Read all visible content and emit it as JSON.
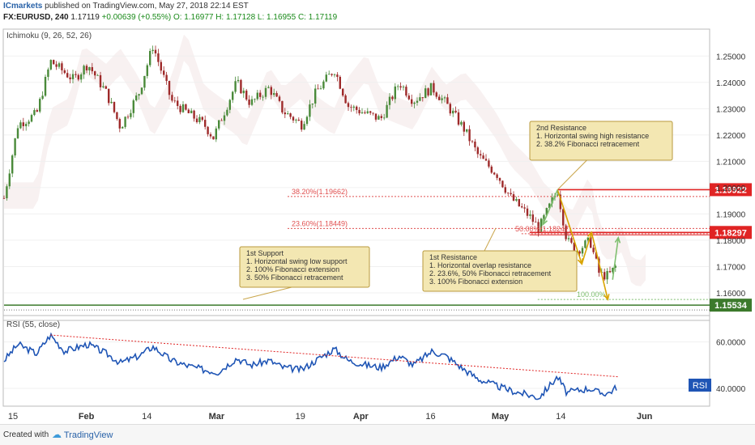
{
  "header": {
    "author": "ICmarkets",
    "published": "published on TradingView.com, May 27, 2018 22:14 EST",
    "symbol": "FX:EURUSD, 240",
    "last": "1.17119",
    "change": "+0.00639 (+0.55%)",
    "ohlc": "O: 1.16977  H: 1.17128  L: 1.16955  C: 1.17119"
  },
  "footer": {
    "created_with": "Created with",
    "logo": "TradingView"
  },
  "colors": {
    "up_candle": "#4a8a3a",
    "down_candle": "#9e2a2a",
    "resistance": "#e02424",
    "support": "#3c7a2c",
    "rsi_line": "#1f55b5",
    "fib": "#e05050",
    "arrow": "#d9a400"
  },
  "chart_data": [
    {
      "type": "candlestick",
      "indicator_label": "Ichimoku (9, 26, 52, 26)",
      "ylim": [
        1.152,
        1.259
      ],
      "yticks": [
        "1.25000",
        "1.24000",
        "1.23000",
        "1.22000",
        "1.21000",
        "1.20000",
        "1.19000",
        "1.18000",
        "1.17000",
        "1.16000"
      ],
      "xticks": [
        "15",
        "Feb",
        "14",
        "Mar",
        "19",
        "Apr",
        "16",
        "May",
        "14",
        "Jun"
      ],
      "path_points": [
        {
          "date": "Jan 15",
          "price": 1.196
        },
        {
          "date": "Jan 18",
          "price": 1.224
        },
        {
          "date": "Jan 22",
          "price": 1.228
        },
        {
          "date": "Jan 25",
          "price": 1.248
        },
        {
          "date": "Jan 30",
          "price": 1.241
        },
        {
          "date": "Feb 2",
          "price": 1.247
        },
        {
          "date": "Feb 6",
          "price": 1.236
        },
        {
          "date": "Feb 9",
          "price": 1.223
        },
        {
          "date": "Feb 13",
          "price": 1.236
        },
        {
          "date": "Feb 16",
          "price": 1.254
        },
        {
          "date": "Feb 20",
          "price": 1.233
        },
        {
          "date": "Feb 23",
          "price": 1.229
        },
        {
          "date": "Feb 27",
          "price": 1.224
        },
        {
          "date": "Mar 1",
          "price": 1.219
        },
        {
          "date": "Mar 6",
          "price": 1.24
        },
        {
          "date": "Mar 9",
          "price": 1.232
        },
        {
          "date": "Mar 13",
          "price": 1.238
        },
        {
          "date": "Mar 16",
          "price": 1.229
        },
        {
          "date": "Mar 20",
          "price": 1.224
        },
        {
          "date": "Mar 23",
          "price": 1.236
        },
        {
          "date": "Mar 27",
          "price": 1.245
        },
        {
          "date": "Mar 30",
          "price": 1.231
        },
        {
          "date": "Apr 3",
          "price": 1.228
        },
        {
          "date": "Apr 6",
          "price": 1.226
        },
        {
          "date": "Apr 10",
          "price": 1.24
        },
        {
          "date": "Apr 13",
          "price": 1.233
        },
        {
          "date": "Apr 17",
          "price": 1.238
        },
        {
          "date": "Apr 20",
          "price": 1.232
        },
        {
          "date": "Apr 24",
          "price": 1.222
        },
        {
          "date": "Apr 27",
          "price": 1.212
        },
        {
          "date": "May 1",
          "price": 1.205
        },
        {
          "date": "May 4",
          "price": 1.196
        },
        {
          "date": "May 8",
          "price": 1.189
        },
        {
          "date": "May 10",
          "price": 1.1845
        },
        {
          "date": "May 14",
          "price": 1.1992
        },
        {
          "date": "May 16",
          "price": 1.18
        },
        {
          "date": "May 18",
          "price": 1.176
        },
        {
          "date": "May 21",
          "price": 1.1797
        },
        {
          "date": "May 23",
          "price": 1.167
        },
        {
          "date": "May 25",
          "price": 1.1665
        },
        {
          "date": "May 27",
          "price": 1.1712
        }
      ],
      "levels": [
        {
          "label": "1.19922",
          "value": 1.19922,
          "color": "#e02424"
        },
        {
          "label": "1.18297",
          "value": 1.18297,
          "color": "#e02424"
        },
        {
          "label": "1.15534",
          "value": 1.15534,
          "color": "#3c7a2c"
        }
      ],
      "fib_levels": [
        {
          "label": "38.20%(1.19662)",
          "value": 1.19662
        },
        {
          "label": "23.60%(1.18449)",
          "value": 1.18449
        },
        {
          "label": "50.00%(1.18247)",
          "value": 1.18247
        },
        {
          "label": "100.00%",
          "value": 1.1575
        }
      ],
      "annotations": [
        {
          "title": "2nd Resistance",
          "lines": [
            "1. Horizontal swing high resistance",
            "2. 38.2% Fibonacci retracement"
          ]
        },
        {
          "title": "1st Support",
          "lines": [
            "1. Horizontal swing low support",
            "2. 100% Fibonacci extension",
            "3. 50% Fibonacci retracement"
          ]
        },
        {
          "title": "1st Resistance",
          "lines": [
            "1. Horizontal overlap resistance",
            "2. 23.6%, 50% Fibonacci retracement",
            "3. 100% Fibonacci extension"
          ]
        }
      ]
    },
    {
      "type": "line",
      "indicator_label": "RSI (55, close)",
      "legend_badge": "RSI",
      "ylim": [
        33,
        70
      ],
      "yticks": [
        "60.0000",
        "40.0000"
      ],
      "points": [
        {
          "date": "Jan 15",
          "value": 52
        },
        {
          "date": "Jan 18",
          "value": 59
        },
        {
          "date": "Jan 22",
          "value": 55
        },
        {
          "date": "Jan 25",
          "value": 63
        },
        {
          "date": "Jan 28",
          "value": 56
        },
        {
          "date": "Feb 2",
          "value": 59
        },
        {
          "date": "Feb 6",
          "value": 55
        },
        {
          "date": "Feb 9",
          "value": 51
        },
        {
          "date": "Feb 13",
          "value": 54
        },
        {
          "date": "Feb 16",
          "value": 58
        },
        {
          "date": "Feb 20",
          "value": 52
        },
        {
          "date": "Feb 23",
          "value": 50
        },
        {
          "date": "Feb 27",
          "value": 48
        },
        {
          "date": "Mar 2",
          "value": 47
        },
        {
          "date": "Mar 6",
          "value": 53
        },
        {
          "date": "Mar 9",
          "value": 50
        },
        {
          "date": "Mar 13",
          "value": 52
        },
        {
          "date": "Mar 16",
          "value": 49
        },
        {
          "date": "Mar 20",
          "value": 48
        },
        {
          "date": "Mar 23",
          "value": 52
        },
        {
          "date": "Mar 27",
          "value": 57
        },
        {
          "date": "Mar 30",
          "value": 52
        },
        {
          "date": "Apr 3",
          "value": 50
        },
        {
          "date": "Apr 6",
          "value": 49
        },
        {
          "date": "Apr 10",
          "value": 54
        },
        {
          "date": "Apr 13",
          "value": 50
        },
        {
          "date": "Apr 17",
          "value": 56
        },
        {
          "date": "Apr 20",
          "value": 54
        },
        {
          "date": "Apr 24",
          "value": 48
        },
        {
          "date": "Apr 27",
          "value": 44
        },
        {
          "date": "May 1",
          "value": 41
        },
        {
          "date": "May 4",
          "value": 39
        },
        {
          "date": "May 8",
          "value": 37
        },
        {
          "date": "May 10",
          "value": 36
        },
        {
          "date": "May 14",
          "value": 45
        },
        {
          "date": "May 16",
          "value": 38
        },
        {
          "date": "May 18",
          "value": 39
        },
        {
          "date": "May 21",
          "value": 40
        },
        {
          "date": "May 23",
          "value": 38
        },
        {
          "date": "May 25",
          "value": 38
        },
        {
          "date": "May 27",
          "value": 41
        }
      ],
      "trendline": [
        {
          "date": "Jan 25",
          "value": 63
        },
        {
          "date": "May 27",
          "value": 45
        }
      ]
    }
  ]
}
